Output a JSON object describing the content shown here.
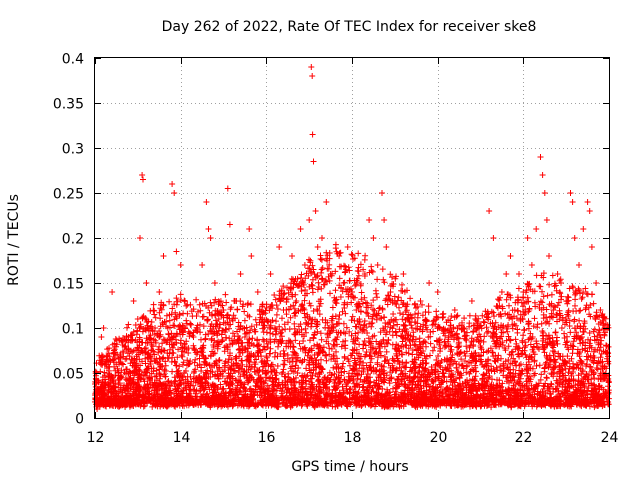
{
  "chart_data": {
    "type": "scatter",
    "title": "Day 262 of 2022, Rate Of TEC Index for receiver ske8",
    "xlabel": "GPS time / hours",
    "ylabel": "ROTI / TECUs",
    "xlim": [
      12,
      24
    ],
    "ylim": [
      0,
      0.4
    ],
    "x_ticks": [
      12,
      14,
      16,
      18,
      20,
      22,
      24
    ],
    "x_tick_labels": [
      "12",
      "14",
      "16",
      "18",
      "20",
      "22",
      "24"
    ],
    "y_ticks": [
      0,
      0.05,
      0.1,
      0.15,
      0.2,
      0.25,
      0.3,
      0.35,
      0.4
    ],
    "y_tick_labels": [
      "0",
      "0.05",
      "0.1",
      "0.15",
      "0.2",
      "0.25",
      "0.3",
      "0.35",
      "0.4"
    ],
    "grid": true,
    "marker": "+",
    "color": "#ff0000",
    "series": [
      {
        "name": "ROTI",
        "points": [
          [
            12.05,
            0.01
          ],
          [
            12.1,
            0.03
          ],
          [
            12.15,
            0.09
          ],
          [
            12.2,
            0.1
          ],
          [
            12.25,
            0.06
          ],
          [
            12.3,
            0.02
          ],
          [
            12.35,
            0.04
          ],
          [
            12.4,
            0.14
          ],
          [
            12.45,
            0.03
          ],
          [
            12.5,
            0.02
          ],
          [
            12.55,
            0.05
          ],
          [
            12.6,
            0.07
          ],
          [
            12.7,
            0.08
          ],
          [
            12.8,
            0.04
          ],
          [
            12.9,
            0.13
          ],
          [
            13.0,
            0.11
          ],
          [
            13.05,
            0.2
          ],
          [
            13.1,
            0.27
          ],
          [
            13.12,
            0.265
          ],
          [
            13.2,
            0.15
          ],
          [
            13.3,
            0.06
          ],
          [
            13.4,
            0.1
          ],
          [
            13.5,
            0.14
          ],
          [
            13.6,
            0.18
          ],
          [
            13.7,
            0.1
          ],
          [
            13.8,
            0.26
          ],
          [
            13.85,
            0.25
          ],
          [
            13.9,
            0.185
          ],
          [
            14.0,
            0.17
          ],
          [
            14.1,
            0.13
          ],
          [
            14.2,
            0.06
          ],
          [
            14.3,
            0.09
          ],
          [
            14.4,
            0.04
          ],
          [
            14.5,
            0.17
          ],
          [
            14.6,
            0.24
          ],
          [
            14.65,
            0.21
          ],
          [
            14.7,
            0.2
          ],
          [
            14.8,
            0.15
          ],
          [
            14.9,
            0.1
          ],
          [
            15.0,
            0.12
          ],
          [
            15.1,
            0.255
          ],
          [
            15.15,
            0.215
          ],
          [
            15.2,
            0.11
          ],
          [
            15.3,
            0.13
          ],
          [
            15.4,
            0.16
          ],
          [
            15.5,
            0.09
          ],
          [
            15.6,
            0.21
          ],
          [
            15.65,
            0.18
          ],
          [
            15.7,
            0.07
          ],
          [
            15.8,
            0.14
          ],
          [
            15.9,
            0.11
          ],
          [
            16.0,
            0.05
          ],
          [
            16.1,
            0.16
          ],
          [
            16.2,
            0.1
          ],
          [
            16.3,
            0.19
          ],
          [
            16.4,
            0.12
          ],
          [
            16.5,
            0.07
          ],
          [
            16.6,
            0.18
          ],
          [
            16.7,
            0.13
          ],
          [
            16.8,
            0.21
          ],
          [
            16.9,
            0.17
          ],
          [
            17.0,
            0.22
          ],
          [
            17.05,
            0.39
          ],
          [
            17.07,
            0.38
          ],
          [
            17.08,
            0.315
          ],
          [
            17.1,
            0.285
          ],
          [
            17.15,
            0.23
          ],
          [
            17.2,
            0.19
          ],
          [
            17.3,
            0.2
          ],
          [
            17.4,
            0.24
          ],
          [
            17.5,
            0.16
          ],
          [
            17.6,
            0.13
          ],
          [
            17.7,
            0.18
          ],
          [
            17.8,
            0.15
          ],
          [
            17.9,
            0.19
          ],
          [
            18.0,
            0.14
          ],
          [
            18.1,
            0.12
          ],
          [
            18.2,
            0.1
          ],
          [
            18.3,
            0.16
          ],
          [
            18.4,
            0.22
          ],
          [
            18.5,
            0.2
          ],
          [
            18.6,
            0.17
          ],
          [
            18.7,
            0.25
          ],
          [
            18.75,
            0.22
          ],
          [
            18.8,
            0.19
          ],
          [
            18.9,
            0.14
          ],
          [
            19.0,
            0.13
          ],
          [
            19.2,
            0.16
          ],
          [
            19.4,
            0.1
          ],
          [
            19.6,
            0.13
          ],
          [
            19.8,
            0.15
          ],
          [
            20.0,
            0.14
          ],
          [
            20.2,
            0.08
          ],
          [
            20.4,
            0.12
          ],
          [
            20.6,
            0.1
          ],
          [
            20.8,
            0.13
          ],
          [
            21.0,
            0.08
          ],
          [
            21.2,
            0.23
          ],
          [
            21.3,
            0.2
          ],
          [
            21.5,
            0.14
          ],
          [
            21.6,
            0.16
          ],
          [
            21.7,
            0.18
          ],
          [
            21.8,
            0.12
          ],
          [
            21.9,
            0.16
          ],
          [
            22.0,
            0.14
          ],
          [
            22.1,
            0.2
          ],
          [
            22.2,
            0.17
          ],
          [
            22.3,
            0.21
          ],
          [
            22.4,
            0.29
          ],
          [
            22.45,
            0.27
          ],
          [
            22.5,
            0.25
          ],
          [
            22.55,
            0.22
          ],
          [
            22.6,
            0.18
          ],
          [
            22.7,
            0.12
          ],
          [
            22.8,
            0.16
          ],
          [
            22.9,
            0.1
          ],
          [
            23.0,
            0.13
          ],
          [
            23.1,
            0.25
          ],
          [
            23.15,
            0.24
          ],
          [
            23.2,
            0.2
          ],
          [
            23.3,
            0.17
          ],
          [
            23.4,
            0.21
          ],
          [
            23.5,
            0.24
          ],
          [
            23.55,
            0.23
          ],
          [
            23.6,
            0.19
          ],
          [
            23.7,
            0.15
          ],
          [
            23.8,
            0.12
          ],
          [
            23.9,
            0.1
          ],
          [
            23.95,
            0.08
          ]
        ]
      }
    ],
    "background": {
      "description_free": true,
      "dense_noise": {
        "x_range": [
          12,
          24
        ],
        "count": 6000,
        "seed": 262,
        "baseline": 0.012,
        "envelope": [
          [
            12,
            0.03
          ],
          [
            12.5,
            0.045
          ],
          [
            13,
            0.06
          ],
          [
            13.5,
            0.07
          ],
          [
            14,
            0.075
          ],
          [
            14.5,
            0.07
          ],
          [
            15,
            0.075
          ],
          [
            15.5,
            0.07
          ],
          [
            16,
            0.07
          ],
          [
            16.5,
            0.085
          ],
          [
            17,
            0.1
          ],
          [
            17.5,
            0.11
          ],
          [
            18,
            0.105
          ],
          [
            18.5,
            0.1
          ],
          [
            19,
            0.09
          ],
          [
            19.5,
            0.07
          ],
          [
            20,
            0.065
          ],
          [
            20.5,
            0.06
          ],
          [
            21,
            0.06
          ],
          [
            21.5,
            0.075
          ],
          [
            22,
            0.085
          ],
          [
            22.5,
            0.09
          ],
          [
            23,
            0.085
          ],
          [
            23.5,
            0.08
          ],
          [
            24,
            0.06
          ]
        ]
      }
    }
  }
}
